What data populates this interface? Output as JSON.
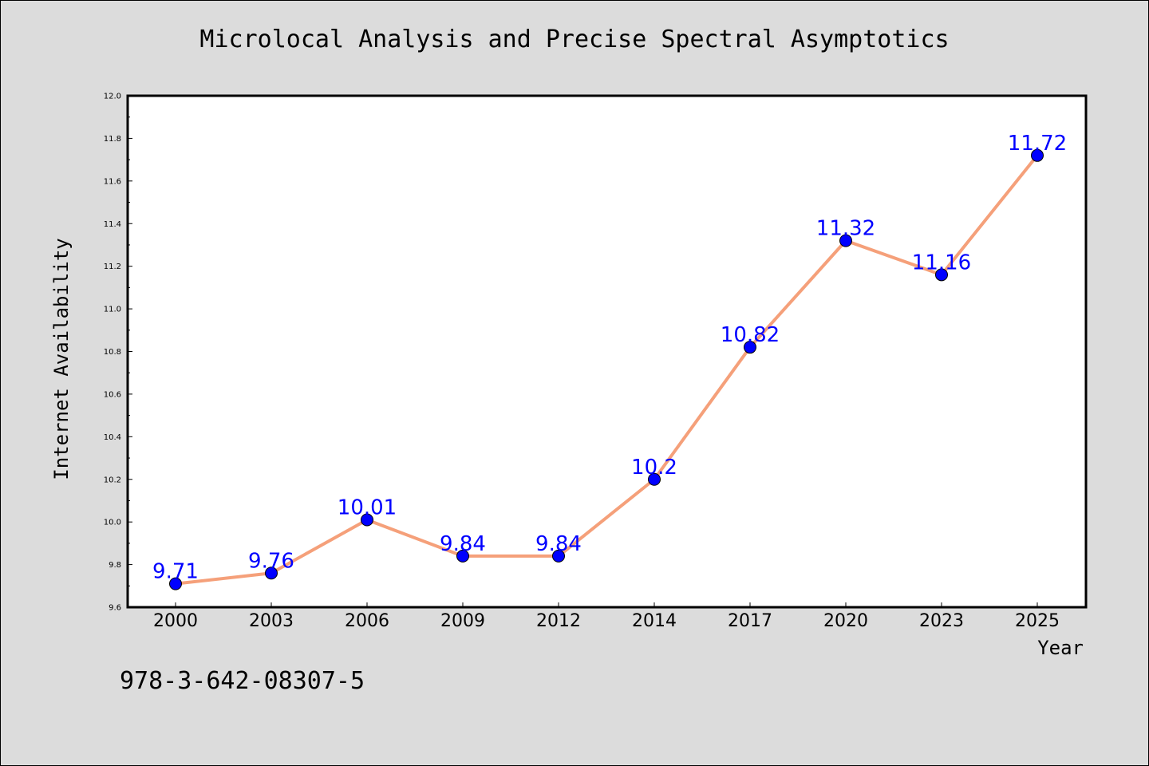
{
  "footer": {
    "isbn": "978-3-642-08307-5"
  },
  "chart_data": {
    "type": "line",
    "title": "Microlocal Analysis and Precise Spectral Asymptotics",
    "xlabel": "Year",
    "ylabel": "Internet Availability",
    "categories": [
      "2000",
      "2003",
      "2006",
      "2009",
      "2012",
      "2014",
      "2017",
      "2020",
      "2023",
      "2025"
    ],
    "values": [
      9.71,
      9.76,
      10.01,
      9.84,
      9.84,
      10.2,
      10.82,
      11.32,
      11.16,
      11.72
    ],
    "data_labels": [
      "9.71",
      "9.76",
      "10.01",
      "9.84",
      "9.84",
      "10.2",
      "10.82",
      "11.32",
      "11.16",
      "11.72"
    ],
    "ylim": [
      9.6,
      12.0
    ],
    "yticks": [
      "9.6",
      "9.8",
      "10.0",
      "10.2",
      "10.4",
      "10.6",
      "10.8",
      "11.0",
      "11.2",
      "11.4",
      "11.6",
      "11.8",
      "12.0"
    ],
    "grid": false,
    "line_color": "#f5a07a",
    "marker_color": "#0000ff",
    "label_color": "#0000ff"
  }
}
